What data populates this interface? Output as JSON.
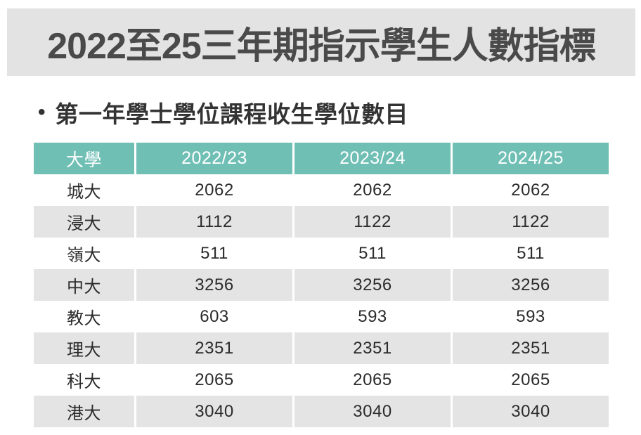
{
  "slide": {
    "title": "2022至25三年期指示學生人數指標",
    "bullet": "•",
    "subtitle": "第一年學士學位課程收生學位數目"
  },
  "table": {
    "columns": [
      "大學",
      "2022/23",
      "2023/24",
      "2024/25"
    ],
    "rows": [
      {
        "university": "城大",
        "values": [
          "2062",
          "2062",
          "2062"
        ]
      },
      {
        "university": "浸大",
        "values": [
          "1112",
          "1122",
          "1122"
        ]
      },
      {
        "university": "嶺大",
        "values": [
          "511",
          "511",
          "511"
        ]
      },
      {
        "university": "中大",
        "values": [
          "3256",
          "3256",
          "3256"
        ]
      },
      {
        "university": "教大",
        "values": [
          "603",
          "593",
          "593"
        ]
      },
      {
        "university": "理大",
        "values": [
          "2351",
          "2351",
          "2351"
        ]
      },
      {
        "university": "科大",
        "values": [
          "2065",
          "2065",
          "2065"
        ]
      },
      {
        "university": "港大",
        "values": [
          "3040",
          "3040",
          "3040"
        ]
      }
    ]
  },
  "colors": {
    "title_bar_bg": "#E3E3E3",
    "title_text": "#4A4A4A",
    "table_header_bg": "#70BFB5",
    "table_header_text": "#FFFFFF",
    "row_alt_bg": "#E4E4E4",
    "row_bg": "#FFFFFF",
    "cell_text": "#2B2B2B",
    "subtitle_text": "#333333"
  },
  "chart_data": {
    "type": "table",
    "title": "2022至25三年期指示學生人數指標",
    "subtitle": "第一年學士學位課程收生學位數目",
    "columns": [
      "大學",
      "2022/23",
      "2023/24",
      "2024/25"
    ],
    "rows": [
      [
        "城大",
        2062,
        2062,
        2062
      ],
      [
        "浸大",
        1112,
        1122,
        1122
      ],
      [
        "嶺大",
        511,
        511,
        511
      ],
      [
        "中大",
        3256,
        3256,
        3256
      ],
      [
        "教大",
        603,
        593,
        593
      ],
      [
        "理大",
        2351,
        2351,
        2351
      ],
      [
        "科大",
        2065,
        2065,
        2065
      ],
      [
        "港大",
        3040,
        3040,
        3040
      ]
    ]
  }
}
